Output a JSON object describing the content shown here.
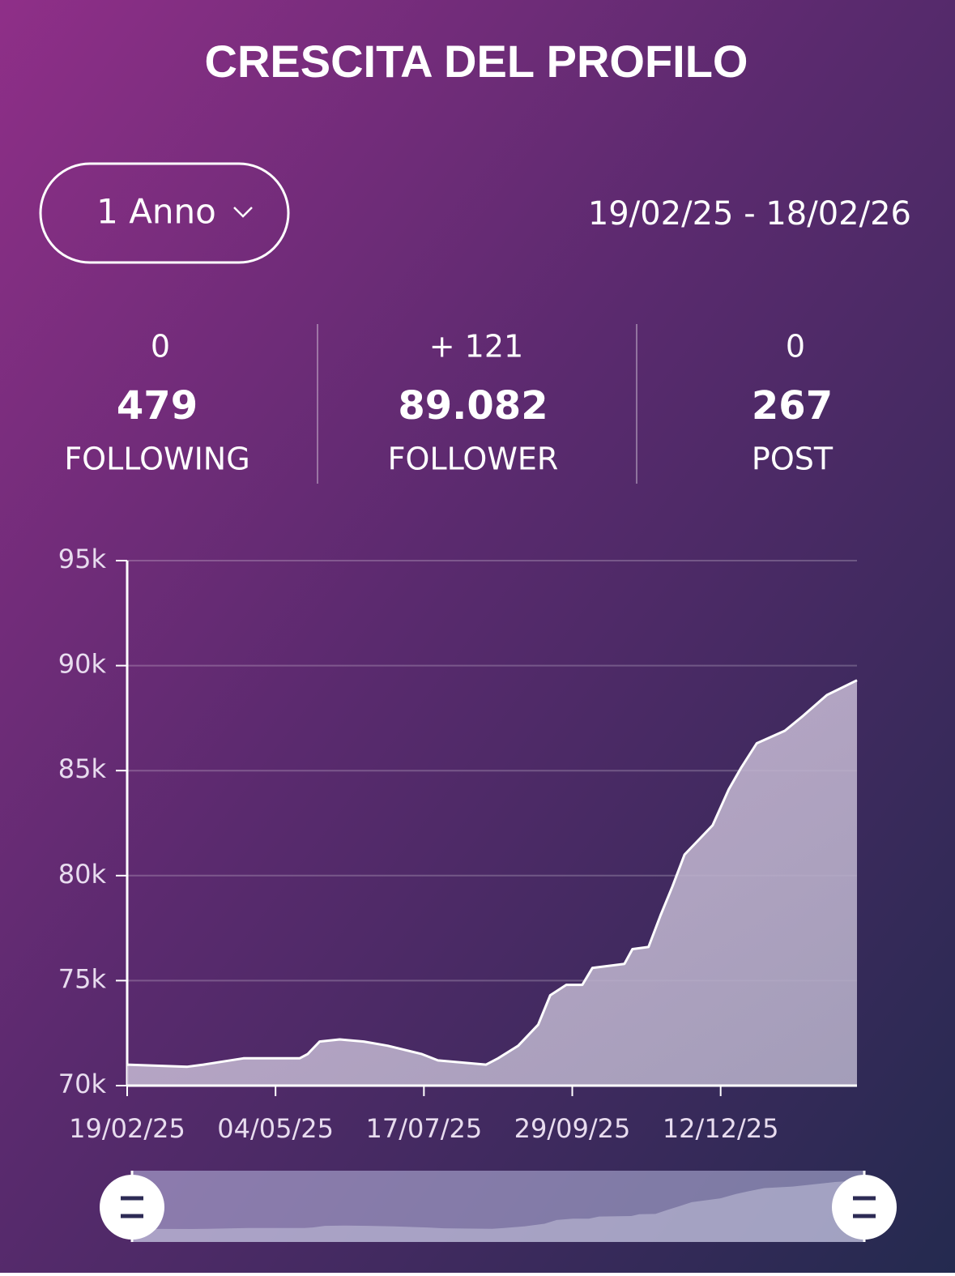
{
  "header": {
    "title": "CRESCITA DEL PROFILO"
  },
  "controls": {
    "period": "1 Anno",
    "date_range": "19/02/25 - 18/02/26"
  },
  "stats": [
    {
      "change": "0",
      "value": "479",
      "label": "FOLLOWING"
    },
    {
      "change": "+ 121",
      "value": "89.082",
      "label": "FOLLOWER"
    },
    {
      "change": "0",
      "value": "267",
      "label": "POST"
    }
  ],
  "chart_data": {
    "type": "area",
    "x": [
      "19/02/25",
      "21/03/25",
      "29/03/25",
      "18/04/25",
      "16/05/25",
      "20/05/25",
      "26/05/25",
      "05/06/25",
      "17/06/25",
      "29/06/25",
      "16/07/25",
      "24/07/25",
      "17/08/25",
      "23/08/25",
      "02/09/25",
      "12/09/25",
      "18/09/25",
      "26/09/25",
      "04/10/25",
      "09/10/25",
      "25/10/25",
      "29/10/25",
      "06/11/25",
      "12/11/25",
      "18/11/25",
      "24/11/25",
      "08/12/25",
      "16/12/25",
      "22/12/25",
      "30/12/25",
      "13/01/26",
      "22/01/26",
      "03/02/26",
      "18/02/26"
    ],
    "values": [
      71000,
      70900,
      71000,
      71300,
      71300,
      71500,
      72100,
      72200,
      72100,
      71900,
      71500,
      71200,
      71000,
      71300,
      71900,
      72900,
      74300,
      74800,
      74800,
      75600,
      75800,
      76500,
      76600,
      78100,
      79500,
      81000,
      82400,
      84100,
      85100,
      86300,
      86900,
      87600,
      88600,
      89300
    ],
    "color": "#ffffff",
    "xlim": [
      "19/02/25",
      "18/02/26"
    ],
    "xticks": [
      "19/02/25",
      "04/05/25",
      "17/07/25",
      "29/09/25",
      "12/12/25"
    ],
    "ylim": [
      70000,
      95000
    ],
    "yticks": [
      {
        "value": 70000,
        "label": "70k"
      },
      {
        "value": 75000,
        "label": "75k"
      },
      {
        "value": 80000,
        "label": "80k"
      },
      {
        "value": 85000,
        "label": "85k"
      },
      {
        "value": 90000,
        "label": "90k"
      },
      {
        "value": 95000,
        "label": "95k"
      }
    ],
    "grid": true
  }
}
